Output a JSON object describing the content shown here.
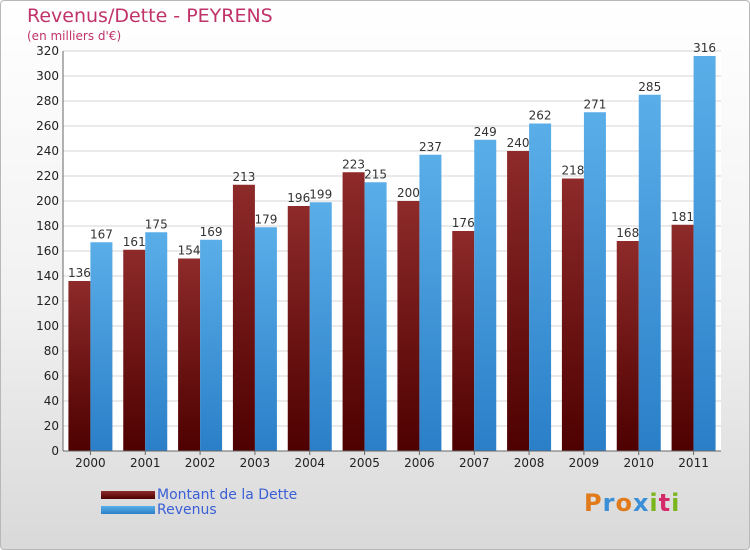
{
  "header": {
    "title": "Revenus/Dette - PEYRENS",
    "subtitle": "(en milliers d'€)"
  },
  "chart_data": {
    "type": "bar",
    "categories": [
      "2000",
      "2001",
      "2002",
      "2003",
      "2004",
      "2005",
      "2006",
      "2007",
      "2008",
      "2009",
      "2010",
      "2011"
    ],
    "series": [
      {
        "name": "Montant de la Dette",
        "color": "#8b1a1a",
        "values": [
          136,
          161,
          154,
          213,
          196,
          223,
          200,
          176,
          240,
          218,
          168,
          181
        ]
      },
      {
        "name": "Revenus",
        "color": "#4a9fe0",
        "values": [
          167,
          175,
          169,
          179,
          199,
          215,
          237,
          249,
          262,
          271,
          285,
          316
        ]
      }
    ],
    "y_ticks": [
      0,
      20,
      40,
      60,
      80,
      100,
      120,
      140,
      160,
      180,
      200,
      220,
      240,
      260,
      280,
      300,
      320
    ],
    "ylim": [
      0,
      320
    ],
    "grid": true,
    "legend_position": "bottom-left"
  },
  "brand": {
    "letters": [
      "P",
      "r",
      "o",
      "x",
      "i",
      "t",
      "i"
    ],
    "colors": [
      "#e07a1b",
      "#3a8fd6",
      "#e07a1b",
      "#3a8fd6",
      "#7ab51d",
      "#d42a6a",
      "#7ab51d"
    ]
  }
}
